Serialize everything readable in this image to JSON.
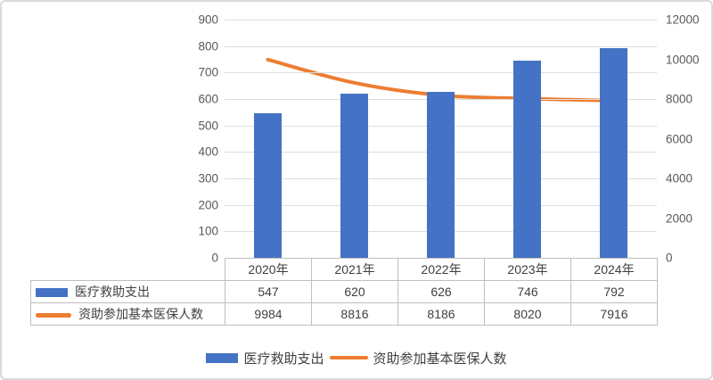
{
  "chart_data": {
    "type": "combo-bar-line",
    "categories": [
      "2020年",
      "2021年",
      "2022年",
      "2023年",
      "2024年"
    ],
    "series": [
      {
        "name": "医疗救助支出",
        "type": "bar",
        "axis": "left",
        "color": "#4472C4",
        "values": [
          547,
          620,
          626,
          746,
          792
        ]
      },
      {
        "name": "资助参加基本医保人数",
        "type": "line",
        "axis": "right",
        "color": "#ED7D31",
        "values": [
          9984,
          8816,
          8186,
          8020,
          7916
        ]
      }
    ],
    "left_axis": {
      "min": 0,
      "max": 900,
      "step": 100,
      "tick_labels": [
        "900",
        "800",
        "700",
        "600",
        "500",
        "400",
        "300",
        "200",
        "100",
        "0"
      ]
    },
    "right_axis": {
      "min": 0,
      "max": 12000,
      "step": 2000,
      "tick_labels": [
        "12000",
        "10000",
        "8000",
        "6000",
        "4000",
        "2000",
        "0"
      ]
    },
    "grid": true,
    "legend_position": "bottom",
    "data_table_shown": true,
    "title": ""
  },
  "colors": {
    "bar": "#4472C4",
    "line": "#ED7D31",
    "gridline": "#DDDDDD",
    "axis_text": "#595959",
    "table_text": "#404040",
    "table_border": "#BFBFBF",
    "frame_border": "#D9D9D9",
    "background": "#FFFFFF"
  }
}
